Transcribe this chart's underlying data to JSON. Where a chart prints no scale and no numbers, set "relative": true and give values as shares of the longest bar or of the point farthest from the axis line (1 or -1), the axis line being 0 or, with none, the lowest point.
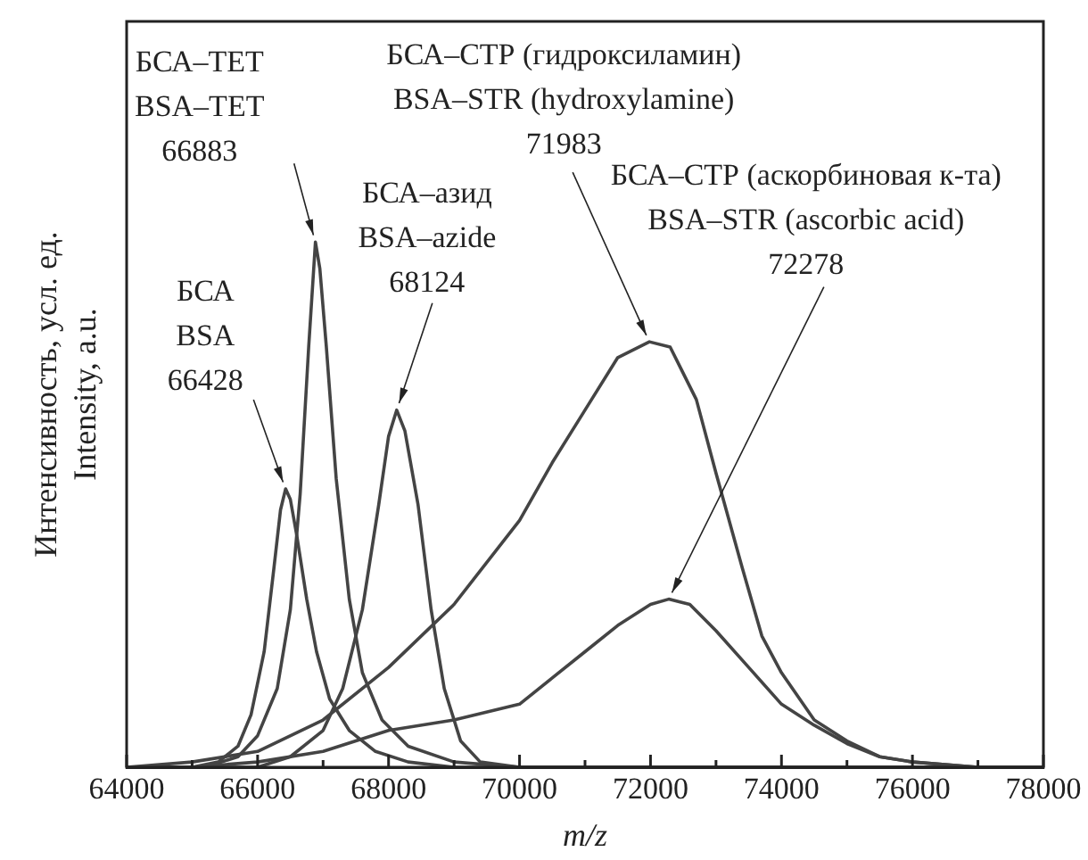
{
  "chart_data": {
    "type": "line",
    "relative": true,
    "xlabel": "m/z",
    "ylabel": "Интенсивность, усл. ед.\nIntensity, a.u.",
    "xlim": [
      64000,
      78000
    ],
    "xticks": [
      64000,
      {
        "value": 65000,
        "label": null
      },
      66000,
      {
        "value": 67000,
        "label": null
      },
      68000,
      {
        "value": 69000,
        "label": null
      },
      70000,
      {
        "value": 71000,
        "label": null
      },
      72000,
      {
        "value": 73000,
        "label": null
      },
      74000,
      {
        "value": 75000,
        "label": null
      },
      76000,
      {
        "value": 77000,
        "label": null
      },
      78000
    ],
    "grid": false,
    "legend": false,
    "marker": "none",
    "line_style": "solid",
    "series": [
      {
        "color": "#444444",
        "x": [
          64000,
          65000,
          65400,
          65700,
          65900,
          66100,
          66250,
          66350,
          66428,
          66500,
          66600,
          66750,
          66900,
          67100,
          67400,
          67800,
          68300,
          69000,
          78000
        ],
        "values": [
          0,
          0,
          0.01,
          0.04,
          0.1,
          0.22,
          0.38,
          0.49,
          0.53,
          0.51,
          0.44,
          0.32,
          0.22,
          0.13,
          0.07,
          0.03,
          0.01,
          0,
          0
        ]
      },
      {
        "color": "#444444",
        "x": [
          64000,
          65200,
          65700,
          66000,
          66300,
          66500,
          66650,
          66780,
          66883,
          66950,
          67050,
          67200,
          67400,
          67600,
          67900,
          68300,
          69000,
          70000,
          78000
        ],
        "values": [
          0,
          0,
          0.02,
          0.06,
          0.15,
          0.3,
          0.52,
          0.8,
          1,
          0.95,
          0.8,
          0.55,
          0.32,
          0.18,
          0.09,
          0.04,
          0.01,
          0,
          0
        ]
      },
      {
        "color": "#444444",
        "x": [
          64000,
          66000,
          66500,
          67000,
          67300,
          67600,
          67850,
          68000,
          68124,
          68250,
          68450,
          68650,
          68850,
          69100,
          69400,
          70000,
          78000
        ],
        "values": [
          0,
          0,
          0.02,
          0.07,
          0.15,
          0.3,
          0.5,
          0.63,
          0.68,
          0.64,
          0.5,
          0.3,
          0.15,
          0.05,
          0.01,
          0,
          0
        ]
      },
      {
        "color": "#444444",
        "x": [
          64000,
          65000,
          66000,
          67000,
          68000,
          69000,
          70000,
          70500,
          71000,
          71500,
          71983,
          72300,
          72700,
          73000,
          73400,
          73700,
          74000,
          74500,
          75000,
          75500,
          76000,
          77000,
          78000
        ],
        "values": [
          0,
          0.01,
          0.03,
          0.09,
          0.19,
          0.31,
          0.47,
          0.58,
          0.68,
          0.78,
          0.81,
          0.8,
          0.7,
          0.56,
          0.38,
          0.25,
          0.18,
          0.09,
          0.05,
          0.02,
          0.01,
          0,
          0
        ]
      },
      {
        "color": "#444444",
        "x": [
          64000,
          65000,
          66000,
          67000,
          68000,
          69000,
          70000,
          70500,
          71000,
          71500,
          72000,
          72278,
          72600,
          73000,
          73500,
          74000,
          74500,
          75000,
          75500,
          76000,
          77000,
          78000
        ],
        "values": [
          0,
          0,
          0.01,
          0.03,
          0.07,
          0.09,
          0.12,
          0.17,
          0.22,
          0.27,
          0.31,
          0.32,
          0.31,
          0.26,
          0.19,
          0.12,
          0.08,
          0.045,
          0.02,
          0.01,
          0,
          0
        ]
      }
    ],
    "annotations": [
      {
        "text": "БСА\nBSA\n66428",
        "x": 66428,
        "y": 0.53
      },
      {
        "text": "БСА–ТЕТ\nBSA–TET\n66883",
        "x": 66883,
        "y": 1
      },
      {
        "text": "БСА–азид\nBSA–azide\n68124",
        "x": 68124,
        "y": 0.68
      },
      {
        "text": "БСА–СТР (гидроксиламин)\nBSA–STR (hydroxylamine)\n71983",
        "x": 71983,
        "y": 0.81
      },
      {
        "text": "БСА–СТР (аскорбиновая к-та)\nBSA–STR (ascorbic acid)\n72278",
        "x": 72278,
        "y": 0.32
      }
    ]
  }
}
